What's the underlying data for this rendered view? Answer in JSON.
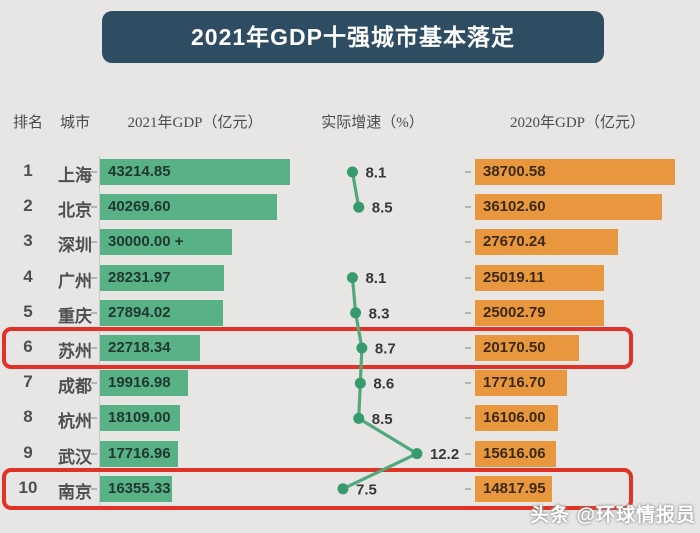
{
  "title": "2021年GDP十强城市基本落定",
  "watermark": "头条 @环球情报员",
  "columns": {
    "rank": "排名",
    "city": "城市",
    "gdp2021": "2021年GDP（亿元）",
    "growth": "实际增速（%）",
    "gdp2020": "2020年GDP（亿元）"
  },
  "colors": {
    "background": "#e7e6e4",
    "title_bg": "#2e4d63",
    "title_text": "#ffffff",
    "bar_2021": "#58b286",
    "bar_2020": "#e9973f",
    "line": "#4fa97b",
    "dot": "#379a6d",
    "highlight_box": "#e03226",
    "header_text": "#4b4b4b",
    "label_text": "#4f4f4f"
  },
  "chart_data": {
    "type": "bar",
    "title": "2021年GDP十强城市基本落定",
    "categories": [
      "上海",
      "北京",
      "深圳",
      "广州",
      "重庆",
      "苏州",
      "成都",
      "杭州",
      "武汉",
      "南京"
    ],
    "ranks": [
      "1",
      "2",
      "3",
      "4",
      "5",
      "6",
      "7",
      "8",
      "9",
      "10"
    ],
    "series": [
      {
        "name": "2021年GDP（亿元）",
        "type": "bar",
        "color": "#58b286",
        "values": [
          43214.85,
          40269.6,
          30000.0,
          28231.97,
          27894.02,
          22718.34,
          19916.98,
          18109.0,
          17716.96,
          16355.33
        ],
        "labels": [
          "43214.85",
          "40269.60",
          "30000.00 +",
          "28231.97",
          "27894.02",
          "22718.34",
          "19916.98",
          "18109.00",
          "17716.96",
          "16355.33"
        ]
      },
      {
        "name": "实际增速（%）",
        "type": "line",
        "color": "#379a6d",
        "values": [
          8.1,
          8.5,
          null,
          8.1,
          8.3,
          8.7,
          8.6,
          8.5,
          12.2,
          7.5
        ],
        "labels": [
          "8.1",
          "8.5",
          "",
          "8.1",
          "8.3",
          "8.7",
          "8.6",
          "8.5",
          "12.2",
          "7.5"
        ]
      },
      {
        "name": "2020年GDP（亿元）",
        "type": "bar",
        "color": "#e9973f",
        "values": [
          38700.58,
          36102.6,
          27670.24,
          25019.11,
          25002.79,
          20170.5,
          17716.7,
          16106.0,
          15616.06,
          14817.95
        ],
        "labels": [
          "38700.58",
          "36102.60",
          "27670.24",
          "25019.11",
          "25002.79",
          "20170.50",
          "17716.70",
          "16106.00",
          "15616.06",
          "14817.95"
        ]
      }
    ],
    "highlighted_ranks": [
      6,
      10
    ],
    "axis": {
      "bar_max_2021": 43214.85,
      "bar_max_2020": 38700.58,
      "growth_range": [
        7.5,
        12.2
      ],
      "grid": false,
      "legend": "none"
    }
  }
}
